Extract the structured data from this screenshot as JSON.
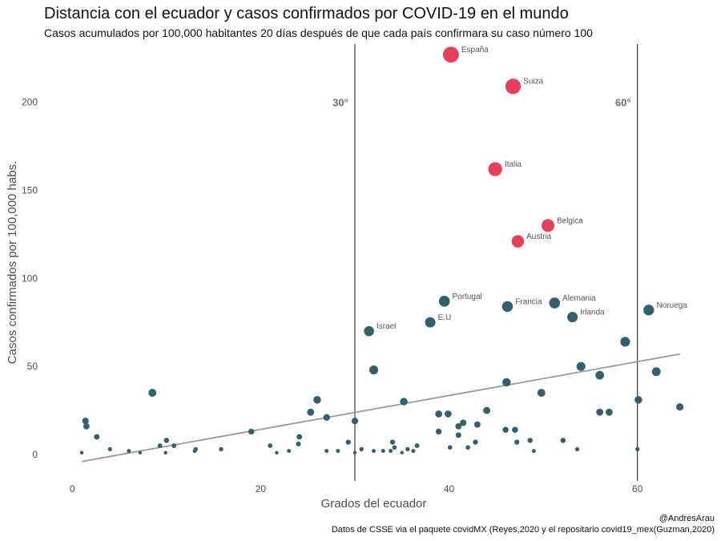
{
  "title": "Distancia con el ecuador y casos confirmados por COVID-19 en el mundo",
  "subtitle": "Casos acumulados por 100,000 habitantes 20 días después de que cada país confirmara su caso número 100",
  "caption": {
    "line1": "@AndresArau",
    "line2": "Datos de CSSE via el paquete covidMX (Reyes,2020 y el repositario covid19_mex(Guzman,2020)"
  },
  "colors": {
    "highlight": "#e8405a",
    "default": "#32606e",
    "trend": "#999999",
    "vline": "#111111"
  },
  "chart_data": {
    "type": "scatter",
    "xlabel": "Grados del ecuador",
    "ylabel": "Casos confirmados por 100,000 habs.",
    "xlim": [
      -3,
      67
    ],
    "ylim": [
      -15,
      233
    ],
    "x_ticks": [
      0,
      20,
      40,
      60
    ],
    "y_ticks": [
      0,
      50,
      100,
      150,
      200
    ],
    "grid": false,
    "reference_lines": [
      {
        "x": 30,
        "label": "30°"
      },
      {
        "x": 60,
        "label": "60°"
      }
    ],
    "trend_line": {
      "x": [
        1,
        64.5
      ],
      "y": [
        -4,
        57
      ]
    },
    "labeled_points": [
      {
        "label": "España",
        "x": 40.2,
        "y": 227,
        "highlight": true
      },
      {
        "label": "Suiza",
        "x": 46.8,
        "y": 209,
        "highlight": true
      },
      {
        "label": "Italia",
        "x": 44.9,
        "y": 162,
        "highlight": true
      },
      {
        "label": "Belgica",
        "x": 50.5,
        "y": 130,
        "highlight": true
      },
      {
        "label": "Austria",
        "x": 47.3,
        "y": 121,
        "highlight": true
      },
      {
        "label": "Portugal",
        "x": 39.5,
        "y": 87,
        "highlight": false
      },
      {
        "label": "Francia",
        "x": 46.2,
        "y": 84,
        "highlight": false
      },
      {
        "label": "Alemania",
        "x": 51.2,
        "y": 86,
        "highlight": false
      },
      {
        "label": "Irlanda",
        "x": 53.1,
        "y": 78,
        "highlight": false
      },
      {
        "label": "Noruega",
        "x": 61.2,
        "y": 82,
        "highlight": false
      },
      {
        "label": "E.U",
        "x": 38.0,
        "y": 75,
        "highlight": false
      },
      {
        "label": "Israel",
        "x": 31.5,
        "y": 70,
        "highlight": false
      }
    ],
    "other_points": [
      {
        "x": 58.7,
        "y": 64
      },
      {
        "x": 62.0,
        "y": 47
      },
      {
        "x": 56.0,
        "y": 45
      },
      {
        "x": 54.0,
        "y": 50
      },
      {
        "x": 46.1,
        "y": 41
      },
      {
        "x": 32.0,
        "y": 48
      },
      {
        "x": 49.8,
        "y": 35
      },
      {
        "x": 64.5,
        "y": 27
      },
      {
        "x": 60.1,
        "y": 31
      },
      {
        "x": 8.5,
        "y": 35
      },
      {
        "x": 26.0,
        "y": 31
      },
      {
        "x": 35.2,
        "y": 30
      },
      {
        "x": 25.3,
        "y": 24
      },
      {
        "x": 27.0,
        "y": 21
      },
      {
        "x": 30.0,
        "y": 19
      },
      {
        "x": 38.9,
        "y": 23
      },
      {
        "x": 39.9,
        "y": 23
      },
      {
        "x": 44.0,
        "y": 25
      },
      {
        "x": 41.0,
        "y": 16
      },
      {
        "x": 41.5,
        "y": 18
      },
      {
        "x": 43.0,
        "y": 17
      },
      {
        "x": 38.9,
        "y": 13
      },
      {
        "x": 41.0,
        "y": 11
      },
      {
        "x": 46.0,
        "y": 14
      },
      {
        "x": 47.0,
        "y": 14
      },
      {
        "x": 56.0,
        "y": 24
      },
      {
        "x": 57.0,
        "y": 24
      },
      {
        "x": 1.4,
        "y": 19
      },
      {
        "x": 1.5,
        "y": 16
      },
      {
        "x": 2.6,
        "y": 10
      },
      {
        "x": 4.0,
        "y": 3
      },
      {
        "x": 6.0,
        "y": 2
      },
      {
        "x": 7.2,
        "y": 1
      },
      {
        "x": 9.3,
        "y": 5
      },
      {
        "x": 10.0,
        "y": 8
      },
      {
        "x": 10.8,
        "y": 5
      },
      {
        "x": 13.0,
        "y": 2
      },
      {
        "x": 13.1,
        "y": 3
      },
      {
        "x": 15.8,
        "y": 3
      },
      {
        "x": 19.0,
        "y": 13
      },
      {
        "x": 21.0,
        "y": 5
      },
      {
        "x": 21.7,
        "y": 1
      },
      {
        "x": 23.0,
        "y": 2
      },
      {
        "x": 24.0,
        "y": 6
      },
      {
        "x": 24.1,
        "y": 10
      },
      {
        "x": 27.0,
        "y": 2
      },
      {
        "x": 28.2,
        "y": 2
      },
      {
        "x": 29.3,
        "y": 7
      },
      {
        "x": 30.0,
        "y": 1
      },
      {
        "x": 30.7,
        "y": 3
      },
      {
        "x": 32.0,
        "y": 2
      },
      {
        "x": 33.0,
        "y": 2
      },
      {
        "x": 33.8,
        "y": 2
      },
      {
        "x": 34.0,
        "y": 7
      },
      {
        "x": 34.2,
        "y": 4
      },
      {
        "x": 35.0,
        "y": 1
      },
      {
        "x": 35.6,
        "y": 3
      },
      {
        "x": 36.2,
        "y": 2
      },
      {
        "x": 36.6,
        "y": 5
      },
      {
        "x": 40.1,
        "y": 4
      },
      {
        "x": 42.0,
        "y": 4
      },
      {
        "x": 42.8,
        "y": 7
      },
      {
        "x": 47.2,
        "y": 7
      },
      {
        "x": 48.6,
        "y": 8
      },
      {
        "x": 49.0,
        "y": 2
      },
      {
        "x": 52.1,
        "y": 8
      },
      {
        "x": 53.6,
        "y": 3
      },
      {
        "x": 60.0,
        "y": 3
      },
      {
        "x": 1.0,
        "y": 1
      },
      {
        "x": 9.9,
        "y": 1
      }
    ]
  }
}
